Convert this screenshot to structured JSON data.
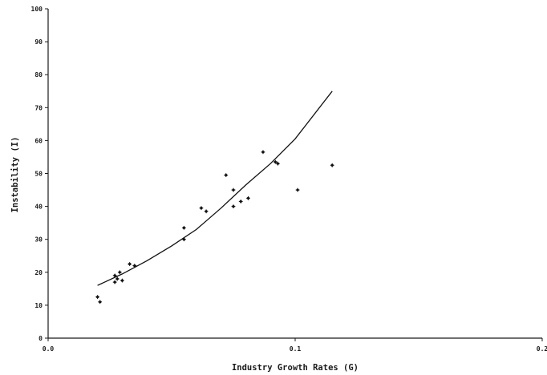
{
  "chart_data": {
    "type": "scatter",
    "xlabel": "Industry Growth Rates (G)",
    "ylabel": "Instability (I)",
    "xlim": [
      0,
      0.2
    ],
    "ylim": [
      0,
      100
    ],
    "x_ticks": [
      0,
      0.1,
      0.2
    ],
    "x_tick_labels": [
      "0.0",
      "0.1",
      "0.2"
    ],
    "y_ticks": [
      0,
      10,
      20,
      30,
      40,
      50,
      60,
      70,
      80,
      90,
      100
    ],
    "y_tick_labels": [
      "0",
      "10",
      "20",
      "30",
      "40",
      "50",
      "60",
      "70",
      "80",
      "90",
      "100"
    ],
    "grid": false,
    "series": [
      {
        "kind": "points",
        "marker": "asterisk",
        "x": [
          0.02,
          0.021,
          0.027,
          0.027,
          0.028,
          0.029,
          0.03,
          0.033,
          0.035,
          0.055,
          0.055,
          0.062,
          0.064,
          0.072,
          0.075,
          0.075,
          0.078,
          0.081,
          0.087,
          0.092,
          0.093,
          0.101,
          0.115
        ],
        "y": [
          12.5,
          11.0,
          17.0,
          19.0,
          18.0,
          20.0,
          17.5,
          22.5,
          22.0,
          33.5,
          30.0,
          39.5,
          38.5,
          49.5,
          45.0,
          40.0,
          41.5,
          42.5,
          56.5,
          53.5,
          53.0,
          45.0,
          52.5
        ]
      },
      {
        "kind": "curve",
        "x": [
          0.02,
          0.03,
          0.04,
          0.05,
          0.06,
          0.07,
          0.08,
          0.09,
          0.1,
          0.115
        ],
        "y": [
          16.0,
          19.5,
          23.5,
          28.0,
          33.0,
          39.5,
          46.5,
          53.0,
          60.5,
          75.0
        ]
      }
    ]
  }
}
